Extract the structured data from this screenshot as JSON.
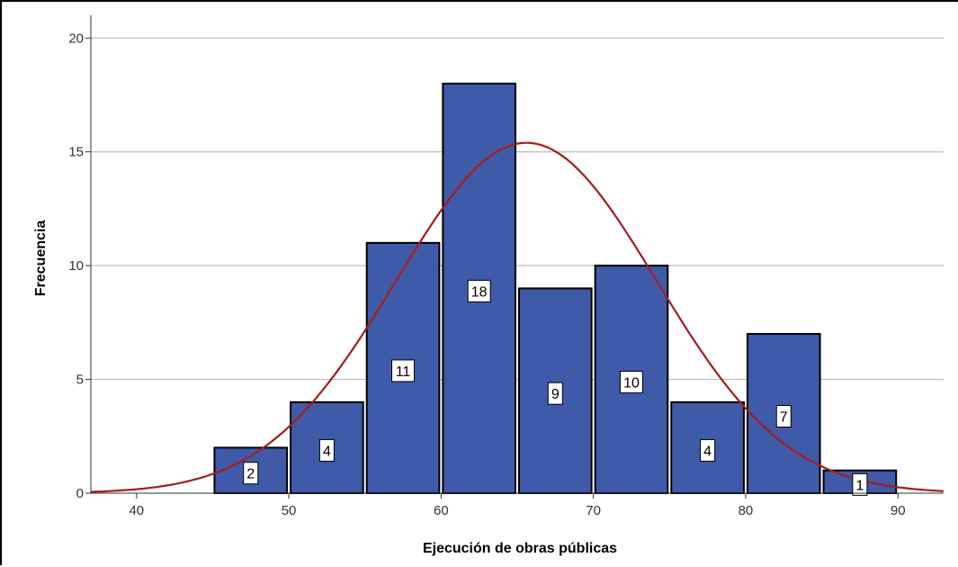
{
  "chart_data": {
    "type": "bar",
    "subtype": "histogram",
    "xlabel": "Ejecución de obras públicas",
    "ylabel": "Frecuencia",
    "xlim": [
      37,
      93
    ],
    "ylim": [
      0,
      21
    ],
    "xticks": [
      40,
      50,
      60,
      70,
      80,
      90
    ],
    "yticks": [
      0,
      5,
      10,
      15,
      20
    ],
    "grid": "horizontal",
    "bar_color": "#3f5aa8",
    "curve_color": "#a61c1c",
    "bins": [
      {
        "start": 45,
        "end": 50,
        "value": 2
      },
      {
        "start": 50,
        "end": 55,
        "value": 4
      },
      {
        "start": 55,
        "end": 60,
        "value": 11
      },
      {
        "start": 60,
        "end": 65,
        "value": 18
      },
      {
        "start": 65,
        "end": 70,
        "value": 9
      },
      {
        "start": 70,
        "end": 75,
        "value": 10
      },
      {
        "start": 75,
        "end": 80,
        "value": 4
      },
      {
        "start": 80,
        "end": 85,
        "value": 7
      },
      {
        "start": 85,
        "end": 90,
        "value": 1
      }
    ],
    "normal_curve": {
      "mean": 65.6,
      "sd": 8.55,
      "bin_width": 5,
      "n": 66
    }
  }
}
